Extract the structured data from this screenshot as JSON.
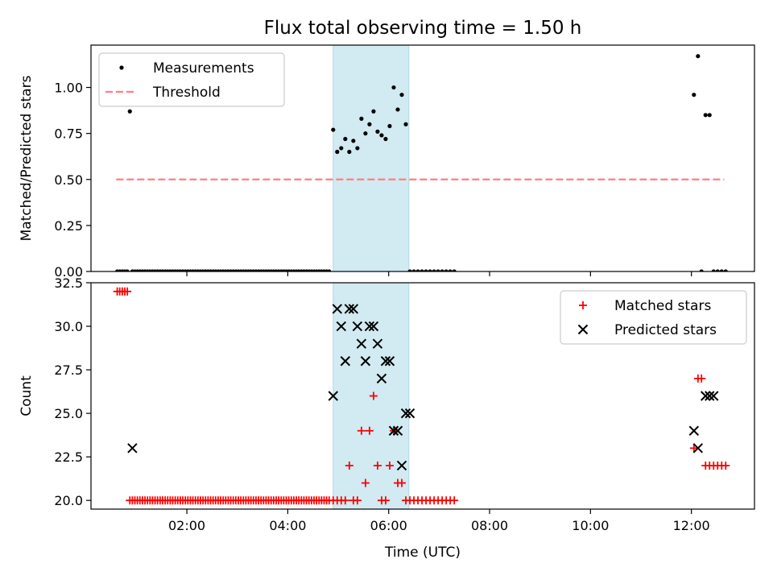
{
  "chart_data": [
    {
      "type": "scatter",
      "title": "Flux total observing time = 1.50 h",
      "xlabel": "",
      "ylabel": "Matched/Predicted stars",
      "xlim": [
        0.1,
        13.25
      ],
      "ylim": [
        0,
        1.23
      ],
      "y_ticks": [
        0.0,
        0.25,
        0.5,
        0.75,
        1.0
      ],
      "y_tick_labels": [
        "0.00",
        "0.25",
        "0.50",
        "0.75",
        "1.00"
      ],
      "x_ticks": [
        2,
        4,
        6,
        8,
        10,
        12
      ],
      "grid": false,
      "legend_position": "top-left",
      "shaded_interval": {
        "x": [
          4.9,
          6.4
        ],
        "color": "#add8e6"
      },
      "series": [
        {
          "name": "Measurements",
          "marker": "dot",
          "color": "#000000",
          "x": [
            0.62,
            0.67,
            0.72,
            0.77,
            0.82,
            0.87,
            0.92,
            0.97,
            1.02,
            1.07,
            1.12,
            1.17,
            1.22,
            1.27,
            1.32,
            1.37,
            1.42,
            1.47,
            1.52,
            1.57,
            1.62,
            1.67,
            1.72,
            1.77,
            1.82,
            1.87,
            1.92,
            1.97,
            2.02,
            2.07,
            2.12,
            2.17,
            2.22,
            2.27,
            2.32,
            2.37,
            2.42,
            2.47,
            2.52,
            2.57,
            2.62,
            2.67,
            2.72,
            2.77,
            2.82,
            2.87,
            2.92,
            2.97,
            3.02,
            3.07,
            3.12,
            3.17,
            3.22,
            3.27,
            3.32,
            3.37,
            3.42,
            3.47,
            3.52,
            3.57,
            3.62,
            3.67,
            3.72,
            3.77,
            3.82,
            3.87,
            3.92,
            3.97,
            4.02,
            4.07,
            4.12,
            4.17,
            4.22,
            4.27,
            4.32,
            4.37,
            4.42,
            4.47,
            4.52,
            4.57,
            4.62,
            4.67,
            4.72,
            4.77,
            4.82,
            4.9,
            4.98,
            5.06,
            5.14,
            5.22,
            5.3,
            5.38,
            5.46,
            5.54,
            5.62,
            5.7,
            5.78,
            5.86,
            5.94,
            6.02,
            6.1,
            6.18,
            6.26,
            6.34,
            6.42,
            6.5,
            6.58,
            6.66,
            6.74,
            6.82,
            6.9,
            6.98,
            7.06,
            7.14,
            7.22,
            7.3,
            12.05,
            12.13,
            12.2,
            12.28,
            12.36,
            12.44,
            12.52,
            12.6,
            12.68
          ],
          "y": [
            0,
            0,
            0,
            0,
            0,
            0.87,
            0,
            0,
            0,
            0,
            0,
            0,
            0,
            0,
            0,
            0,
            0,
            0,
            0,
            0,
            0,
            0,
            0,
            0,
            0,
            0,
            0,
            0,
            0,
            0,
            0,
            0,
            0,
            0,
            0,
            0,
            0,
            0,
            0,
            0,
            0,
            0,
            0,
            0,
            0,
            0,
            0,
            0,
            0,
            0,
            0,
            0,
            0,
            0,
            0,
            0,
            0,
            0,
            0,
            0,
            0,
            0,
            0,
            0,
            0,
            0,
            0,
            0,
            0,
            0,
            0,
            0,
            0,
            0,
            0,
            0,
            0,
            0,
            0,
            0,
            0,
            0,
            0,
            0,
            0,
            0.77,
            0.65,
            0.67,
            0.72,
            0.65,
            0.71,
            0.67,
            0.83,
            0.75,
            0.8,
            0.87,
            0.76,
            0.74,
            0.72,
            0.79,
            1.0,
            0.88,
            0.96,
            0.8,
            0,
            0,
            0,
            0,
            0,
            0,
            0,
            0,
            0,
            0,
            0,
            0,
            0.96,
            1.17,
            0,
            0.85,
            0.85,
            0,
            0,
            0,
            0
          ]
        },
        {
          "name": "Threshold",
          "marker": "dashed-line",
          "color": "#ff7f7f",
          "x": [
            0.6,
            12.65
          ],
          "y": [
            0.5,
            0.5
          ]
        }
      ]
    },
    {
      "type": "scatter",
      "title": "",
      "xlabel": "Time (UTC)",
      "ylabel": "Count",
      "xlim": [
        0.1,
        13.25
      ],
      "ylim": [
        19.5,
        32.5
      ],
      "y_ticks": [
        20.0,
        22.5,
        25.0,
        27.5,
        30.0,
        32.5
      ],
      "y_tick_labels": [
        "20.0",
        "22.5",
        "25.0",
        "27.5",
        "30.0",
        "32.5"
      ],
      "x_ticks": [
        2,
        4,
        6,
        8,
        10,
        12
      ],
      "x_tick_labels": [
        "02:00",
        "04:00",
        "06:00",
        "08:00",
        "10:00",
        "12:00"
      ],
      "grid": false,
      "legend_position": "top-right",
      "shaded_interval": {
        "x": [
          4.9,
          6.4
        ],
        "color": "#add8e6"
      },
      "series": [
        {
          "name": "Matched stars",
          "marker": "plus",
          "color": "#ff0000",
          "x": [
            0.62,
            0.67,
            0.72,
            0.77,
            0.82,
            0.87,
            0.92,
            0.97,
            1.02,
            1.07,
            1.12,
            1.17,
            1.22,
            1.27,
            1.32,
            1.37,
            1.42,
            1.47,
            1.52,
            1.57,
            1.62,
            1.67,
            1.72,
            1.77,
            1.82,
            1.87,
            1.92,
            1.97,
            2.02,
            2.07,
            2.12,
            2.17,
            2.22,
            2.27,
            2.32,
            2.37,
            2.42,
            2.47,
            2.52,
            2.57,
            2.62,
            2.67,
            2.72,
            2.77,
            2.82,
            2.87,
            2.92,
            2.97,
            3.02,
            3.07,
            3.12,
            3.17,
            3.22,
            3.27,
            3.32,
            3.37,
            3.42,
            3.47,
            3.52,
            3.57,
            3.62,
            3.67,
            3.72,
            3.77,
            3.82,
            3.87,
            3.92,
            3.97,
            4.02,
            4.07,
            4.12,
            4.17,
            4.22,
            4.27,
            4.32,
            4.37,
            4.42,
            4.47,
            4.52,
            4.57,
            4.62,
            4.67,
            4.72,
            4.77,
            4.82,
            4.9,
            4.98,
            5.06,
            5.14,
            5.22,
            5.3,
            5.38,
            5.46,
            5.54,
            5.62,
            5.7,
            5.78,
            5.86,
            5.94,
            6.02,
            6.1,
            6.18,
            6.26,
            6.34,
            6.42,
            6.5,
            6.58,
            6.66,
            6.74,
            6.82,
            6.9,
            6.98,
            7.06,
            7.14,
            7.22,
            7.3,
            12.05,
            12.13,
            12.2,
            12.28,
            12.36,
            12.44,
            12.52,
            12.6,
            12.68
          ],
          "y": [
            32,
            32,
            32,
            32,
            32,
            20,
            20,
            20,
            20,
            20,
            20,
            20,
            20,
            20,
            20,
            20,
            20,
            20,
            20,
            20,
            20,
            20,
            20,
            20,
            20,
            20,
            20,
            20,
            20,
            20,
            20,
            20,
            20,
            20,
            20,
            20,
            20,
            20,
            20,
            20,
            20,
            20,
            20,
            20,
            20,
            20,
            20,
            20,
            20,
            20,
            20,
            20,
            20,
            20,
            20,
            20,
            20,
            20,
            20,
            20,
            20,
            20,
            20,
            20,
            20,
            20,
            20,
            20,
            20,
            20,
            20,
            20,
            20,
            20,
            20,
            20,
            20,
            20,
            20,
            20,
            20,
            20,
            20,
            20,
            20,
            20,
            20,
            20,
            20,
            22,
            20,
            20,
            24,
            21,
            24,
            26,
            22,
            20,
            20,
            22,
            24,
            21,
            21,
            20,
            20,
            20,
            20,
            20,
            20,
            20,
            20,
            20,
            20,
            20,
            20,
            20,
            23,
            27,
            27,
            22,
            22,
            22,
            22,
            22,
            22
          ]
        },
        {
          "name": "Predicted stars",
          "marker": "x",
          "color": "#000000",
          "x": [
            0.92,
            4.9,
            4.98,
            5.06,
            5.14,
            5.22,
            5.3,
            5.38,
            5.46,
            5.54,
            5.62,
            5.7,
            5.78,
            5.86,
            5.94,
            6.02,
            6.1,
            6.18,
            6.26,
            6.34,
            6.42,
            12.05,
            12.13,
            12.28,
            12.36,
            12.44
          ],
          "y": [
            23,
            26,
            31,
            30,
            28,
            31,
            31,
            30,
            29,
            28,
            30,
            30,
            29,
            27,
            28,
            28,
            24,
            24,
            22,
            25,
            25,
            24,
            23,
            26,
            26,
            26
          ]
        }
      ]
    }
  ]
}
